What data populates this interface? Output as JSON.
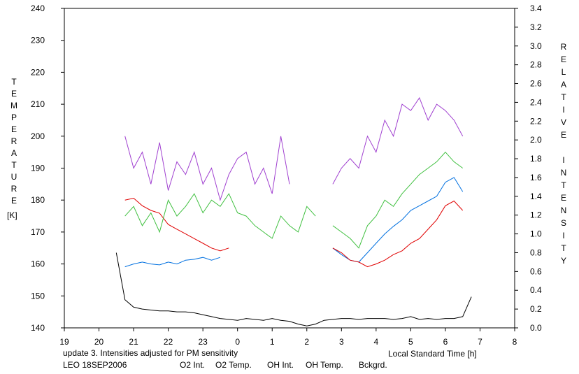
{
  "chart_data": {
    "type": "line",
    "x_label": "Local Standard Time [h]",
    "y_label": "TEMPERATURE",
    "y_unit": "[K]",
    "y2_label": "RELATIVE INTENSITY",
    "annotations": [
      {
        "text": "update 3. Intensities adjusted for PM sensitivity",
        "color": "#30c030"
      },
      {
        "text": "LEO 18SEP2006",
        "color": "#000000"
      }
    ],
    "xlim": [
      19,
      32
    ],
    "xticks": [
      19,
      20,
      21,
      22,
      23,
      {
        "value": 24,
        "label": "0"
      },
      {
        "value": 25,
        "label": "1"
      },
      {
        "value": 26,
        "label": "2"
      },
      {
        "value": 27,
        "label": "3"
      },
      {
        "value": 28,
        "label": "4"
      },
      {
        "value": 29,
        "label": "5"
      },
      {
        "value": 30,
        "label": "6"
      },
      {
        "value": 31,
        "label": "7"
      },
      {
        "value": 32,
        "label": "8"
      }
    ],
    "ylim": [
      140,
      240
    ],
    "yticks": [
      140,
      150,
      160,
      170,
      180,
      190,
      200,
      210,
      220,
      230,
      240
    ],
    "y2lim": [
      0,
      3.4
    ],
    "y2ticks": [
      {
        "value": 0,
        "label": "0.0"
      },
      0.2,
      0.4,
      0.6,
      0.8,
      {
        "value": 1,
        "label": "1.0"
      },
      1.2,
      1.4,
      1.6,
      1.8,
      {
        "value": 2,
        "label": "2.0"
      },
      2.2,
      2.4,
      2.6,
      2.8,
      {
        "value": 3,
        "label": "3.0"
      },
      3.2,
      3.4
    ],
    "x": [
      20.5,
      20.75,
      21,
      21.25,
      21.5,
      21.75,
      22,
      22.25,
      22.5,
      22.75,
      23,
      23.25,
      23.5,
      23.75,
      24,
      24.25,
      24.5,
      24.75,
      25,
      25.25,
      25.5,
      25.75,
      26,
      26.25,
      26.5,
      26.75,
      27,
      27.25,
      27.5,
      27.75,
      28,
      28.25,
      28.5,
      28.75,
      29,
      29.25,
      29.5,
      29.75,
      30,
      30.25,
      30.5,
      30.75
    ],
    "series": [
      {
        "name": "O2 Int.",
        "color": "#0070e0",
        "axis": "y2",
        "values": [
          null,
          0.65,
          0.68,
          0.7,
          0.68,
          0.67,
          0.7,
          0.68,
          0.72,
          0.73,
          0.75,
          0.72,
          0.75,
          null,
          null,
          null,
          null,
          null,
          null,
          null,
          null,
          null,
          null,
          null,
          null,
          0.85,
          0.78,
          0.72,
          0.7,
          0.8,
          0.9,
          1.0,
          1.08,
          1.15,
          1.25,
          1.3,
          1.35,
          1.4,
          1.55,
          1.6,
          1.45,
          null
        ]
      },
      {
        "name": "O2 Temp.",
        "color": "#a040d0",
        "values": [
          null,
          200,
          190,
          195,
          185,
          198,
          183,
          192,
          188,
          195,
          185,
          190,
          180,
          188,
          193,
          195,
          185,
          190,
          182,
          200,
          185,
          null,
          null,
          null,
          null,
          185,
          190,
          193,
          190,
          200,
          195,
          205,
          200,
          210,
          208,
          212,
          205,
          210,
          208,
          205,
          200,
          null
        ]
      },
      {
        "name": "OH Int.",
        "color": "#e00000",
        "axis": "y2",
        "values": [
          null,
          1.36,
          1.38,
          1.3,
          1.25,
          1.22,
          1.1,
          1.05,
          1.0,
          0.95,
          0.9,
          0.85,
          0.82,
          0.85,
          null,
          null,
          null,
          null,
          null,
          null,
          null,
          null,
          null,
          null,
          null,
          0.85,
          0.8,
          0.72,
          0.7,
          0.65,
          0.68,
          0.72,
          0.78,
          0.82,
          0.9,
          0.95,
          1.05,
          1.15,
          1.3,
          1.35,
          1.25,
          null
        ]
      },
      {
        "name": "OH Temp.",
        "color": "#40c040",
        "values": [
          null,
          175,
          178,
          172,
          176,
          170,
          180,
          175,
          178,
          182,
          176,
          180,
          178,
          182,
          176,
          175,
          172,
          170,
          168,
          175,
          172,
          170,
          178,
          175,
          null,
          172,
          170,
          168,
          165,
          172,
          175,
          180,
          178,
          182,
          185,
          188,
          190,
          192,
          195,
          192,
          190,
          null
        ]
      },
      {
        "name": "Bckgrd.",
        "color": "#000000",
        "axis": "y2",
        "values": [
          0.8,
          0.3,
          0.22,
          0.2,
          0.19,
          0.18,
          0.18,
          0.17,
          0.17,
          0.16,
          0.14,
          0.12,
          0.1,
          0.09,
          0.08,
          0.1,
          0.09,
          0.08,
          0.1,
          0.08,
          0.07,
          0.04,
          0.02,
          0.04,
          0.08,
          0.09,
          0.1,
          0.1,
          0.09,
          0.1,
          0.1,
          0.1,
          0.09,
          0.1,
          0.12,
          0.09,
          0.1,
          0.09,
          0.1,
          0.1,
          0.12,
          0.33
        ]
      }
    ]
  }
}
